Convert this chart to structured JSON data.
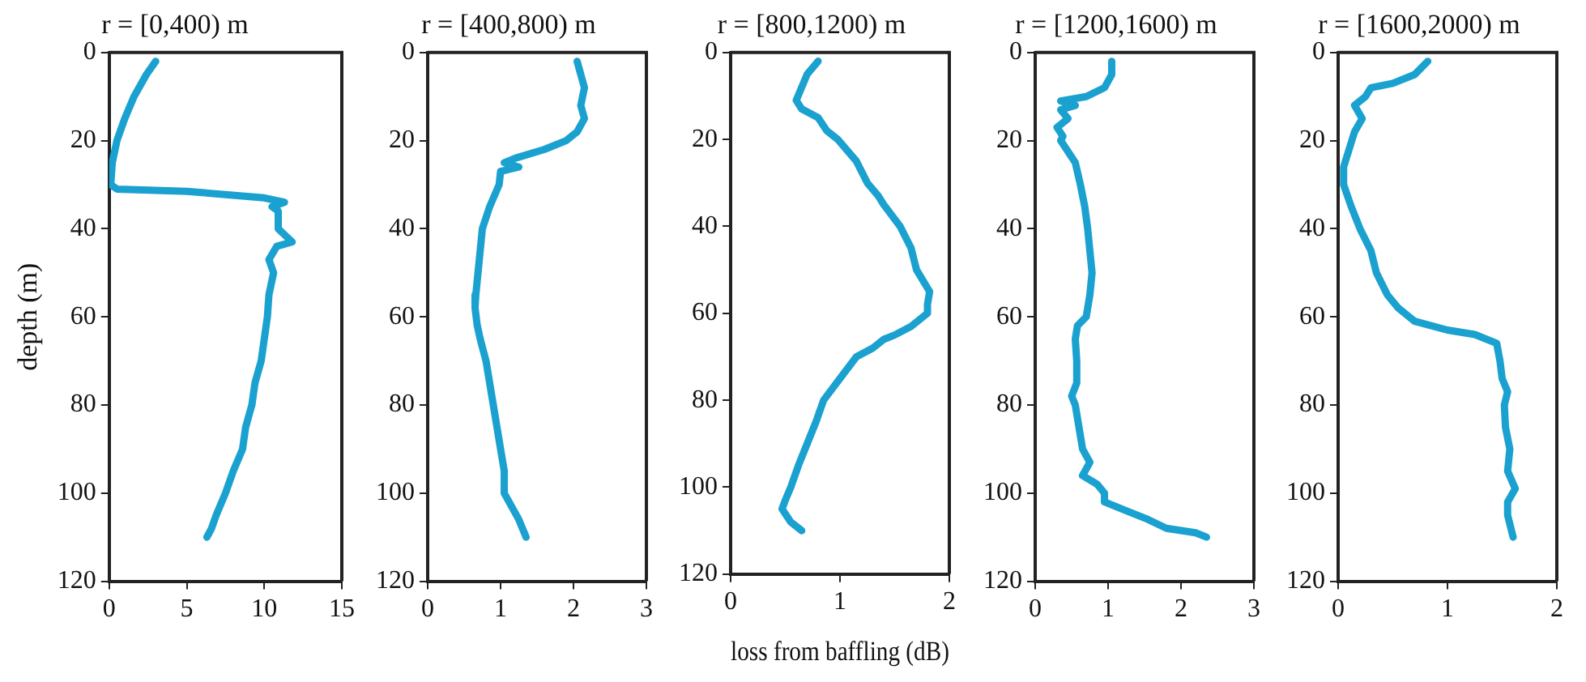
{
  "chart_data": [
    {
      "type": "line",
      "title": "r = [0,400) m",
      "ylabel": "depth (m)",
      "xlim": [
        0,
        15
      ],
      "xticks": [
        0,
        5,
        10,
        15
      ],
      "ylim": [
        120,
        0
      ],
      "yticks": [
        0,
        20,
        40,
        60,
        80,
        100,
        120
      ],
      "grid": false,
      "marker": "none",
      "series": [
        {
          "color": "#1ba1d0",
          "x": [
            3,
            2.4,
            1.6,
            1.0,
            0.5,
            0.2,
            0.1,
            0.5,
            5,
            10,
            11.3,
            10.5,
            10.9,
            10.9,
            11.8,
            10.8,
            10.3,
            10.6,
            10.3,
            10.2,
            10,
            9.8,
            9.4,
            9.2,
            8.8,
            8.6,
            8.0,
            7.5,
            6.9,
            6.6,
            6.3
          ],
          "values": [
            2,
            5,
            10,
            15,
            20,
            25,
            30,
            31,
            31.5,
            33,
            34,
            35,
            36,
            40,
            43,
            44,
            47,
            50,
            55,
            60,
            65,
            70,
            75,
            80,
            85,
            90,
            95,
            100,
            105,
            108,
            110
          ]
        }
      ]
    },
    {
      "type": "line",
      "title": "r = [400,800) m",
      "xlim": [
        0,
        3
      ],
      "xticks": [
        0,
        1,
        2,
        3
      ],
      "ylim": [
        120,
        0
      ],
      "yticks": [
        0,
        20,
        40,
        60,
        80,
        100,
        120
      ],
      "grid": false,
      "marker": "none",
      "series": [
        {
          "color": "#1ba1d0",
          "x": [
            2.05,
            2.15,
            2.1,
            2.15,
            2.05,
            1.9,
            1.6,
            1.2,
            1.05,
            1.25,
            1.0,
            0.98,
            0.85,
            0.75,
            0.72,
            0.69,
            0.66,
            0.65,
            0.68,
            0.72,
            0.8,
            0.85,
            0.9,
            0.95,
            1.0,
            1.05,
            1.05,
            1.15,
            1.25,
            1.35
          ],
          "values": [
            2,
            8,
            12,
            15,
            18,
            20,
            22,
            24,
            25,
            26,
            27,
            30,
            35,
            40,
            45,
            50,
            55,
            58,
            62,
            65,
            70,
            75,
            80,
            85,
            90,
            95,
            100,
            103,
            106,
            110
          ]
        }
      ]
    },
    {
      "type": "line",
      "title": "r = [800,1200) m",
      "xlabel": "loss from baffling (dB)",
      "xlim": [
        0,
        2
      ],
      "xticks": [
        0,
        1,
        2
      ],
      "ylim": [
        120,
        0
      ],
      "yticks": [
        0,
        20,
        40,
        60,
        80,
        100,
        120
      ],
      "grid": false,
      "marker": "none",
      "series": [
        {
          "color": "#1ba1d0",
          "x": [
            0.8,
            0.7,
            0.65,
            0.6,
            0.65,
            0.8,
            0.88,
            0.98,
            1.15,
            1.25,
            1.35,
            1.4,
            1.55,
            1.65,
            1.7,
            1.82,
            1.8,
            1.8,
            1.65,
            1.5,
            1.4,
            1.3,
            1.15,
            1.0,
            0.85,
            0.78,
            0.7,
            0.62,
            0.55,
            0.5,
            0.47,
            0.55,
            0.65
          ],
          "values": [
            2,
            5,
            8,
            11,
            13,
            15,
            18,
            20,
            25,
            30,
            33,
            35,
            40,
            45,
            50,
            55,
            58,
            60,
            63,
            65,
            66,
            68,
            70,
            75,
            80,
            85,
            90,
            95,
            100,
            103,
            105,
            108,
            110
          ]
        }
      ]
    },
    {
      "type": "line",
      "title": "r = [1200,1600) m",
      "xlim": [
        0,
        3
      ],
      "xticks": [
        0,
        1,
        2,
        3
      ],
      "ylim": [
        120,
        0
      ],
      "yticks": [
        0,
        20,
        40,
        60,
        80,
        100,
        120
      ],
      "grid": false,
      "marker": "none",
      "series": [
        {
          "color": "#1ba1d0",
          "x": [
            1.05,
            1.05,
            0.95,
            0.7,
            0.35,
            0.55,
            0.35,
            0.45,
            0.3,
            0.38,
            0.35,
            0.55,
            0.62,
            0.68,
            0.72,
            0.75,
            0.78,
            0.75,
            0.7,
            0.58,
            0.55,
            0.57,
            0.57,
            0.5,
            0.55,
            0.6,
            0.65,
            0.75,
            0.65,
            0.85,
            0.95,
            0.95,
            1.25,
            1.55,
            1.8,
            2.2,
            2.35
          ],
          "values": [
            2,
            5,
            8,
            10,
            11,
            12,
            13,
            15,
            17,
            19,
            20,
            25,
            30,
            35,
            40,
            45,
            50,
            55,
            60,
            62,
            65,
            70,
            75,
            78,
            80,
            85,
            90,
            93,
            96,
            98,
            100,
            102,
            104,
            106,
            108,
            109,
            110
          ]
        }
      ]
    },
    {
      "type": "line",
      "title": "r = [1600,2000) m",
      "xlim": [
        0,
        2
      ],
      "xticks": [
        0,
        1,
        2
      ],
      "ylim": [
        120,
        0
      ],
      "yticks": [
        0,
        20,
        40,
        60,
        80,
        100,
        120
      ],
      "grid": false,
      "marker": "none",
      "series": [
        {
          "color": "#1ba1d0",
          "x": [
            0.82,
            0.7,
            0.5,
            0.3,
            0.25,
            0.15,
            0.22,
            0.15,
            0.1,
            0.05,
            0.05,
            0.12,
            0.2,
            0.3,
            0.35,
            0.45,
            0.55,
            0.7,
            1.0,
            1.25,
            1.45,
            1.48,
            1.5,
            1.55,
            1.52,
            1.53,
            1.57,
            1.55,
            1.62,
            1.55,
            1.55,
            1.6
          ],
          "values": [
            2,
            5,
            7,
            8,
            10,
            12,
            15,
            18,
            22,
            26,
            30,
            35,
            40,
            45,
            50,
            55,
            58,
            61,
            63,
            64,
            66,
            70,
            74,
            77,
            80,
            85,
            90,
            95,
            99,
            102,
            105,
            110
          ]
        }
      ]
    }
  ]
}
